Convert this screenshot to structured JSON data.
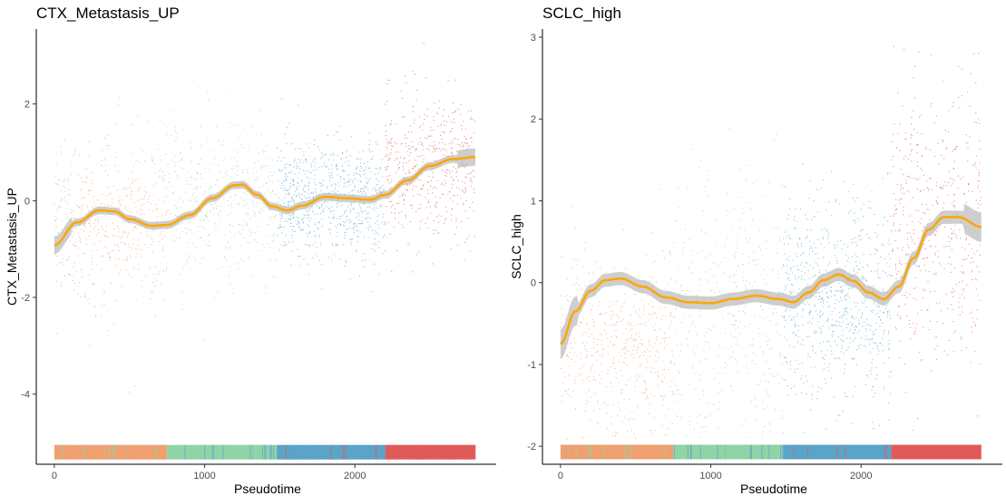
{
  "chart_data": [
    {
      "type": "scatter",
      "title": "CTX_Metastasis_UP",
      "xlabel": "Pseudotime",
      "ylabel": "CTX_Metastasis_UP",
      "xlim": [
        -120,
        2940
      ],
      "ylim": [
        -5.45,
        3.55
      ],
      "xticks": [
        0,
        1000,
        2000
      ],
      "yticks": [
        2,
        0,
        -2,
        -4
      ],
      "grid": false,
      "legend": "none",
      "colors": {
        "cluster_orange": "#F0A070",
        "cluster_green": "#8FD4A6",
        "cluster_blue": "#5AA4C8",
        "cluster_red": "#E05A5A",
        "trend": "#FFA500",
        "ribbon": "#BEBEBE"
      },
      "color_segments": [
        {
          "x_start": 0,
          "x_end": 750,
          "color": "#F0A070"
        },
        {
          "x_start": 750,
          "x_end": 1480,
          "color": "#8FD4A6"
        },
        {
          "x_start": 1480,
          "x_end": 2200,
          "color": "#5AA4C8"
        },
        {
          "x_start": 2200,
          "x_end": 2800,
          "color": "#E05A5A"
        }
      ],
      "bar_y": -5.2,
      "trend": {
        "x": [
          0,
          150,
          300,
          400,
          500,
          650,
          750,
          900,
          1050,
          1200,
          1250,
          1350,
          1450,
          1550,
          1650,
          1800,
          1950,
          2100,
          2200,
          2350,
          2500,
          2650,
          2800
        ],
        "y": [
          -0.92,
          -0.45,
          -0.2,
          -0.22,
          -0.38,
          -0.52,
          -0.5,
          -0.3,
          0.05,
          0.32,
          0.33,
          0.12,
          -0.12,
          -0.2,
          -0.1,
          0.08,
          0.05,
          0.02,
          0.12,
          0.42,
          0.72,
          0.86,
          0.9
        ]
      },
      "scatter_profile": [
        {
          "x_start": 0,
          "x_end": 750,
          "y_mean": -0.4,
          "y_sd": 0.85,
          "n": 520
        },
        {
          "x_start": 750,
          "x_end": 1480,
          "y_mean": 0.0,
          "y_sd": 0.75,
          "n": 420
        },
        {
          "x_start": 1480,
          "x_end": 2200,
          "y_mean": 0.05,
          "y_sd": 0.6,
          "n": 780
        },
        {
          "x_start": 2200,
          "x_end": 2800,
          "y_mean": 0.7,
          "y_sd": 0.75,
          "n": 520
        }
      ]
    },
    {
      "type": "scatter",
      "title": "SCLC_high",
      "xlabel": "Pseudotime",
      "ylabel": "SCLC_high",
      "xlim": [
        -120,
        2940
      ],
      "ylim": [
        -2.22,
        3.1
      ],
      "xticks": [
        0,
        1000,
        2000
      ],
      "yticks": [
        3,
        2,
        1,
        0,
        -1,
        -2
      ],
      "grid": false,
      "legend": "none",
      "colors": {
        "cluster_orange": "#F0A070",
        "cluster_green": "#8FD4A6",
        "cluster_blue": "#5AA4C8",
        "cluster_red": "#E05A5A",
        "trend": "#FFA500",
        "ribbon": "#BEBEBE"
      },
      "color_segments": [
        {
          "x_start": 0,
          "x_end": 750,
          "color": "#F0A070"
        },
        {
          "x_start": 750,
          "x_end": 1480,
          "color": "#8FD4A6"
        },
        {
          "x_start": 1480,
          "x_end": 2200,
          "color": "#5AA4C8"
        },
        {
          "x_start": 2200,
          "x_end": 2800,
          "color": "#E05A5A"
        }
      ],
      "bar_y": -2.07,
      "trend": {
        "x": [
          0,
          100,
          200,
          300,
          400,
          550,
          700,
          850,
          1000,
          1150,
          1300,
          1450,
          1550,
          1650,
          1750,
          1850,
          1950,
          2050,
          2150,
          2250,
          2350,
          2450,
          2550,
          2650,
          2800
        ],
        "y": [
          -0.75,
          -0.35,
          -0.1,
          0.03,
          0.05,
          -0.05,
          -0.18,
          -0.24,
          -0.25,
          -0.2,
          -0.16,
          -0.2,
          -0.24,
          -0.12,
          0.03,
          0.1,
          0.02,
          -0.12,
          -0.2,
          -0.05,
          0.3,
          0.65,
          0.8,
          0.8,
          0.68
        ]
      },
      "scatter_profile": [
        {
          "x_start": 0,
          "x_end": 750,
          "y_mean": -0.8,
          "y_sd": 0.55,
          "n": 520
        },
        {
          "x_start": 750,
          "x_end": 1480,
          "y_mean": -0.3,
          "y_sd": 0.85,
          "n": 420
        },
        {
          "x_start": 1480,
          "x_end": 2200,
          "y_mean": -0.2,
          "y_sd": 0.6,
          "n": 780
        },
        {
          "x_start": 2200,
          "x_end": 2800,
          "y_mean": 0.7,
          "y_sd": 0.85,
          "n": 520
        }
      ]
    }
  ]
}
